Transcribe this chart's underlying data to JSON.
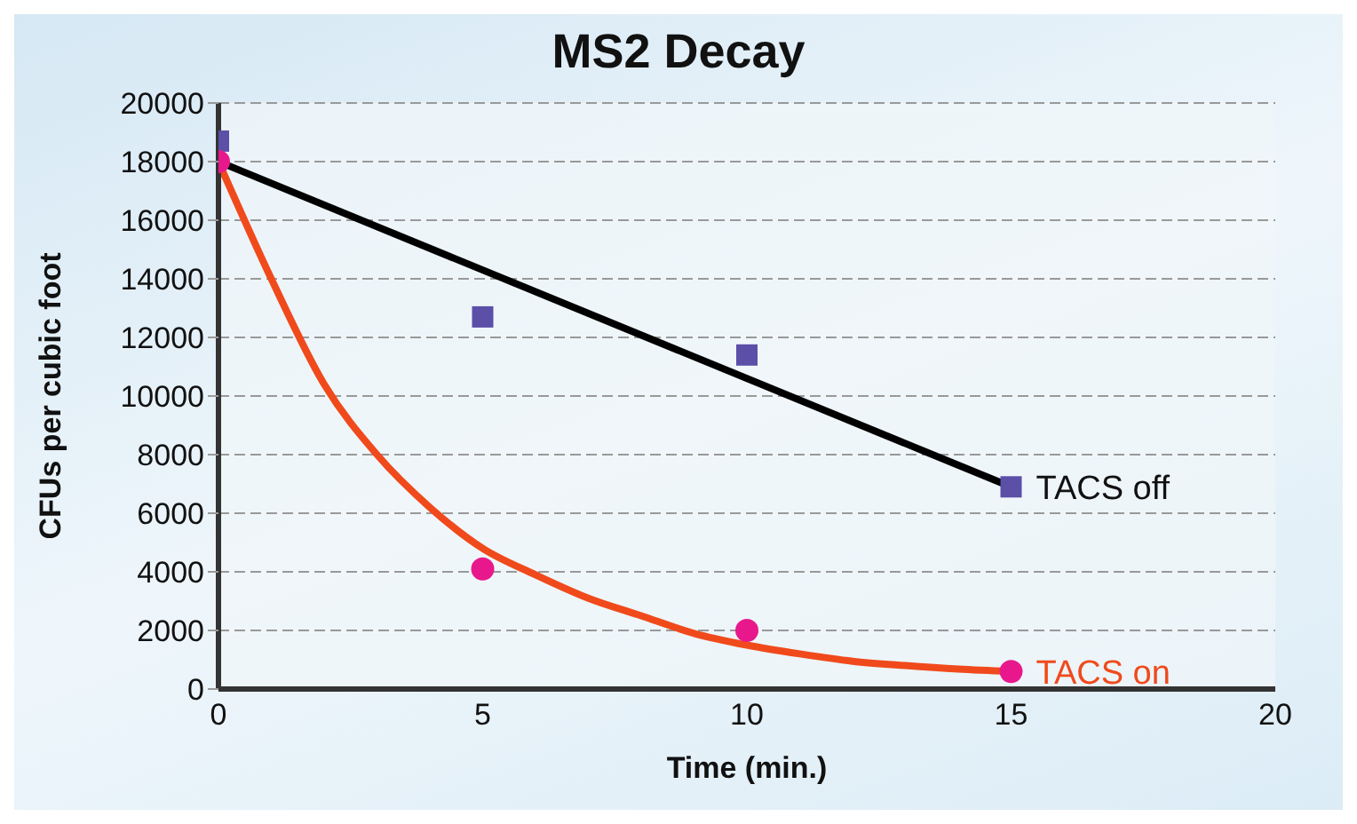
{
  "chart_data": {
    "type": "scatter",
    "title": "MS2 Decay",
    "xlabel": "Time (min.)",
    "ylabel": "CFUs per cubic foot",
    "xlim": [
      0,
      20
    ],
    "xticks": [
      0,
      5,
      10,
      15,
      20
    ],
    "ylim": [
      0,
      20000
    ],
    "yticks": [
      0,
      2000,
      4000,
      6000,
      8000,
      10000,
      12000,
      14000,
      16000,
      18000,
      20000
    ],
    "grid": "y",
    "series": [
      {
        "type": "line",
        "color": "#000000",
        "line_style": "solid",
        "marker": "none",
        "x": [
          0,
          15
        ],
        "values": [
          18000,
          6900
        ]
      },
      {
        "type": "line",
        "color": "#f04a1c",
        "line_style": "solid",
        "marker": "none",
        "x": [
          0,
          1,
          2,
          3,
          4,
          5,
          6,
          7,
          8,
          9,
          10,
          11,
          12,
          13,
          14,
          15
        ],
        "values": [
          18000,
          14000,
          10400,
          8000,
          6200,
          4800,
          3900,
          3100,
          2500,
          1900,
          1500,
          1200,
          950,
          800,
          680,
          600
        ]
      },
      {
        "name": "TACS off",
        "color": "#5b4fa8",
        "marker": "square",
        "x": [
          0,
          5,
          10,
          15
        ],
        "values": [
          18700,
          12700,
          11400,
          6900
        ]
      },
      {
        "name": "TACS on",
        "color": "#e8188c",
        "marker": "circle",
        "x": [
          0,
          5,
          10,
          15
        ],
        "values": [
          18000,
          4100,
          2000,
          600
        ]
      }
    ]
  }
}
